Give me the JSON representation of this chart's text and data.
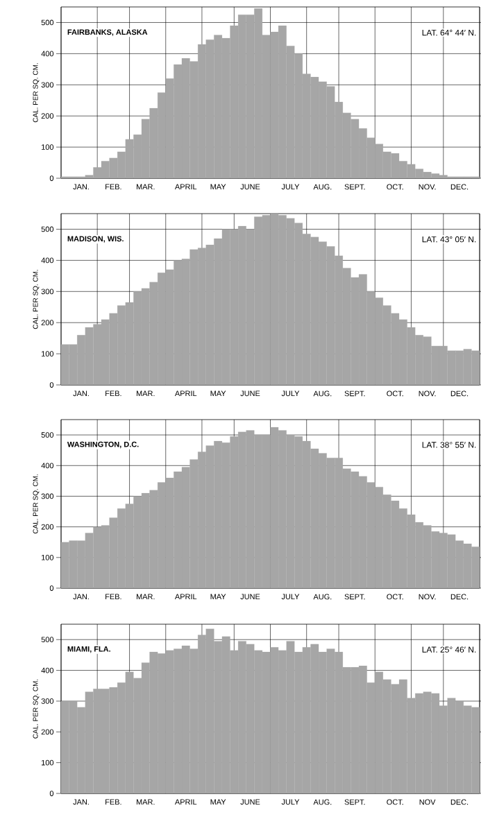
{
  "chart_data": [
    {
      "type": "bar",
      "title": "FAIRBANKS, ALASKA",
      "subtitle": "LAT. 64° 44′ N.",
      "ylabel": "CAL. PER SQ. CM.",
      "color": "#a6a6a6",
      "grid": true,
      "categories": [
        null,
        null,
        "JAN.",
        null,
        null,
        null,
        "FEB.",
        null,
        null,
        null,
        "MAR.",
        null,
        null,
        null,
        null,
        "APRIL",
        null,
        null,
        null,
        "MAY",
        null,
        null,
        null,
        "JUNE",
        null,
        null,
        null,
        null,
        "JULY",
        null,
        null,
        null,
        "AUG.",
        null,
        null,
        null,
        "SEPT.",
        null,
        null,
        null,
        null,
        "OCT.",
        null,
        null,
        null,
        "NOV.",
        null,
        null,
        null,
        "DEC.",
        null,
        null
      ],
      "values": [
        5,
        5,
        5,
        10,
        35,
        55,
        65,
        85,
        125,
        140,
        190,
        225,
        275,
        320,
        365,
        385,
        375,
        430,
        445,
        460,
        450,
        490,
        525,
        525,
        545,
        460,
        470,
        490,
        425,
        400,
        335,
        325,
        310,
        295,
        245,
        210,
        190,
        160,
        130,
        110,
        85,
        80,
        55,
        45,
        30,
        20,
        15,
        10,
        5,
        5,
        5,
        5
      ],
      "ylim": [
        0,
        550
      ],
      "yticks": [
        0,
        100,
        200,
        300,
        400,
        500
      ]
    },
    {
      "type": "bar",
      "title": "MADISON, WIS.",
      "subtitle": "LAT. 43° 05′ N.",
      "ylabel": "CAL. PER SQ. CM.",
      "color": "#a6a6a6",
      "grid": true,
      "categories": [
        null,
        null,
        "JAN.",
        null,
        null,
        null,
        "FEB.",
        null,
        null,
        null,
        "MAR.",
        null,
        null,
        null,
        null,
        "APRIL",
        null,
        null,
        null,
        "MAY",
        null,
        null,
        null,
        "JUNE",
        null,
        null,
        null,
        null,
        "JULY",
        null,
        null,
        null,
        "AUG.",
        null,
        null,
        null,
        "SEPT.",
        null,
        null,
        null,
        null,
        "OCT.",
        null,
        null,
        null,
        "NOV.",
        null,
        null,
        null,
        "DEC.",
        null,
        null
      ],
      "values": [
        130,
        130,
        160,
        185,
        195,
        210,
        230,
        255,
        265,
        300,
        310,
        330,
        360,
        370,
        400,
        405,
        435,
        440,
        450,
        470,
        500,
        500,
        510,
        500,
        540,
        545,
        550,
        545,
        535,
        520,
        485,
        475,
        460,
        445,
        415,
        375,
        345,
        355,
        300,
        280,
        255,
        230,
        210,
        185,
        160,
        155,
        125,
        125,
        110,
        110,
        115,
        110
      ],
      "ylim": [
        0,
        550
      ],
      "yticks": [
        0,
        100,
        200,
        300,
        400,
        500
      ]
    },
    {
      "type": "bar",
      "title": "WASHINGTON, D.C.",
      "subtitle": "LAT. 38° 55′ N.",
      "ylabel": "CAL. PER SQ. CM.",
      "color": "#a6a6a6",
      "grid": true,
      "categories": [
        null,
        null,
        "JAN.",
        null,
        null,
        null,
        "FEB.",
        null,
        null,
        null,
        "MAR.",
        null,
        null,
        null,
        null,
        "APRIL",
        null,
        null,
        null,
        "MAY",
        null,
        null,
        null,
        "JUNE",
        null,
        null,
        null,
        null,
        "JULY",
        null,
        null,
        null,
        "AUG.",
        null,
        null,
        null,
        "SEPT.",
        null,
        null,
        null,
        null,
        "OCT.",
        null,
        null,
        null,
        "NOV.",
        null,
        null,
        null,
        "DEC.",
        null,
        null
      ],
      "values": [
        150,
        155,
        155,
        180,
        200,
        205,
        230,
        260,
        275,
        300,
        310,
        320,
        345,
        360,
        380,
        395,
        420,
        445,
        465,
        480,
        475,
        495,
        510,
        515,
        500,
        500,
        525,
        515,
        500,
        495,
        480,
        455,
        440,
        425,
        425,
        390,
        380,
        365,
        345,
        330,
        305,
        285,
        260,
        240,
        215,
        205,
        185,
        180,
        175,
        155,
        145,
        135
      ],
      "ylim": [
        0,
        550
      ],
      "yticks": [
        0,
        100,
        200,
        300,
        400,
        500
      ]
    },
    {
      "type": "bar",
      "title": "MIAMI, FLA.",
      "subtitle": "LAT. 25° 46′ N.",
      "ylabel": "CAL. PER SQ. CM.",
      "color": "#a6a6a6",
      "grid": true,
      "categories": [
        null,
        null,
        "JAN.",
        null,
        null,
        null,
        "FEB.",
        null,
        null,
        null,
        "MAR.",
        null,
        null,
        null,
        null,
        "APRIL",
        null,
        null,
        null,
        "MAY",
        null,
        null,
        null,
        "JUNE",
        null,
        null,
        null,
        null,
        "JULY",
        null,
        null,
        null,
        "AUG.",
        null,
        null,
        null,
        "SEPT.",
        null,
        null,
        null,
        null,
        "OCT.",
        null,
        null,
        null,
        "NOV",
        null,
        null,
        null,
        "DEC.",
        null,
        null
      ],
      "values": [
        300,
        300,
        280,
        330,
        340,
        340,
        345,
        360,
        395,
        375,
        425,
        460,
        455,
        465,
        470,
        480,
        470,
        515,
        535,
        495,
        510,
        465,
        495,
        485,
        465,
        460,
        475,
        465,
        495,
        460,
        475,
        485,
        460,
        470,
        460,
        410,
        410,
        415,
        360,
        395,
        370,
        355,
        370,
        310,
        325,
        330,
        325,
        285,
        310,
        300,
        285,
        280
      ],
      "ylim": [
        0,
        550
      ],
      "yticks": [
        0,
        100,
        200,
        300,
        400,
        500
      ]
    }
  ]
}
